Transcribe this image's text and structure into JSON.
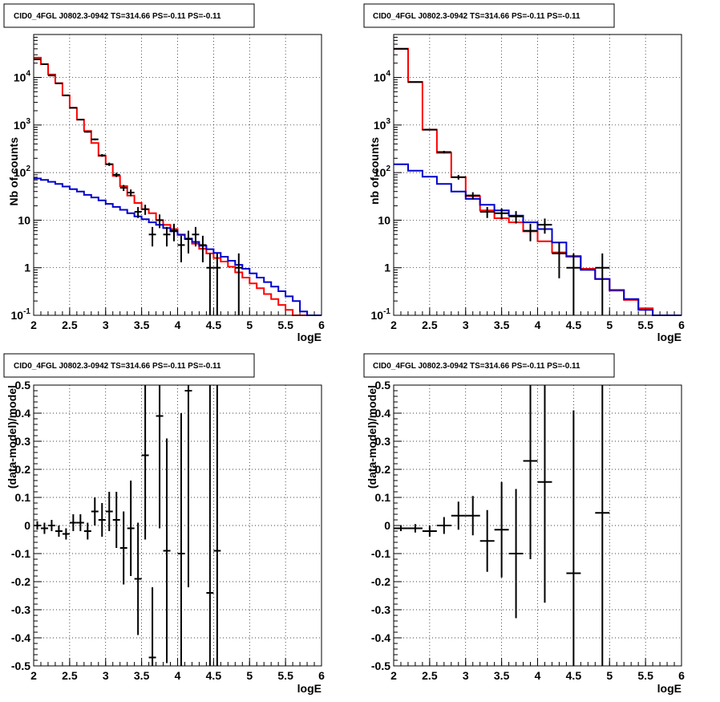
{
  "page": {
    "background": "#ffffff"
  },
  "colors": {
    "data": "#000000",
    "total_model": "#ff0000",
    "background_model": "#0000cc",
    "grid": "#000000"
  },
  "chart_data": [
    {
      "type": "step",
      "title": "CID0_4FGL J0802.3-0942 TS=314.66 PS=-0.11 PS=-0.11",
      "xlabel": "logE",
      "ylabel": "Nb of counts",
      "xlim": [
        2,
        6
      ],
      "ylim": [
        0.1,
        80000
      ],
      "yscale": "log",
      "grid": true,
      "xticks": [
        "2",
        "2.5",
        "3",
        "3.5",
        "4",
        "4.5",
        "5",
        "5.5",
        "6"
      ],
      "yticks": [
        {
          "v": 0.1,
          "t": "10",
          "sup": "-1"
        },
        {
          "v": 1,
          "t": "1"
        },
        {
          "v": 10,
          "t": "10"
        },
        {
          "v": 100,
          "t": "10",
          "sup": "2"
        },
        {
          "v": 1000,
          "t": "10",
          "sup": "3"
        },
        {
          "v": 10000,
          "t": "10",
          "sup": "4"
        }
      ],
      "series": [
        {
          "role": "total_model",
          "bins": [
            2.0,
            2.1,
            2.2,
            2.3,
            2.4,
            2.5,
            2.6,
            2.7,
            2.8,
            2.9,
            3.0,
            3.1,
            3.2,
            3.3,
            3.4,
            3.5,
            3.6,
            3.7,
            3.8,
            3.9,
            4.0,
            4.1,
            4.2,
            4.3,
            4.4,
            4.5,
            4.6,
            4.7,
            4.8,
            4.9,
            5.0,
            5.1,
            5.2,
            5.3,
            5.4,
            5.5,
            5.6,
            5.7,
            5.8,
            5.9,
            6.0
          ],
          "values": [
            26000,
            19000,
            11500,
            7600,
            4200,
            2300,
            1300,
            750,
            420,
            225,
            150,
            85,
            52,
            33,
            23,
            17,
            14,
            10,
            8,
            6.5,
            5,
            4,
            3.2,
            2.5,
            2.0,
            1.6,
            1.35,
            1.05,
            0.8,
            0.62,
            0.47,
            0.37,
            0.28,
            0.22,
            0.165,
            0.13,
            0.1,
            0.1,
            0.1,
            0.1
          ]
        },
        {
          "role": "background_model",
          "bins": [
            2.0,
            2.1,
            2.2,
            2.3,
            2.4,
            2.5,
            2.6,
            2.7,
            2.8,
            2.9,
            3.0,
            3.1,
            3.2,
            3.3,
            3.4,
            3.5,
            3.6,
            3.7,
            3.8,
            3.9,
            4.0,
            4.1,
            4.2,
            4.3,
            4.4,
            4.5,
            4.6,
            4.7,
            4.8,
            4.9,
            5.0,
            5.1,
            5.2,
            5.3,
            5.4,
            5.5,
            5.6,
            5.7,
            5.8,
            5.9,
            6.0
          ],
          "values": [
            75,
            70,
            64,
            58,
            51,
            45,
            40,
            34,
            30,
            26,
            22,
            19,
            16.5,
            14,
            12,
            10.5,
            9,
            8,
            6.8,
            5.8,
            4.9,
            4.1,
            3.5,
            2.9,
            2.45,
            2.05,
            1.7,
            1.4,
            1.15,
            0.95,
            0.76,
            0.62,
            0.5,
            0.4,
            0.32,
            0.25,
            0.2,
            0.12,
            0.1,
            0.1
          ]
        }
      ],
      "points": [
        {
          "x": 2.05,
          "y": 24000,
          "e": 160
        },
        {
          "x": 2.15,
          "y": 19000,
          "e": 140
        },
        {
          "x": 2.25,
          "y": 11000,
          "e": 105
        },
        {
          "x": 2.35,
          "y": 7500,
          "e": 87
        },
        {
          "x": 2.45,
          "y": 4200,
          "e": 65
        },
        {
          "x": 2.55,
          "y": 2300,
          "e": 48
        },
        {
          "x": 2.65,
          "y": 1300,
          "e": 36
        },
        {
          "x": 2.75,
          "y": 720,
          "e": 27
        },
        {
          "x": 2.85,
          "y": 500,
          "e": 22
        },
        {
          "x": 2.95,
          "y": 230,
          "e": 15
        },
        {
          "x": 3.05,
          "y": 150,
          "e": 12
        },
        {
          "x": 3.15,
          "y": 90,
          "e": 9.5
        },
        {
          "x": 3.25,
          "y": 48,
          "e": 7
        },
        {
          "x": 3.35,
          "y": 38,
          "e": 6.2
        },
        {
          "x": 3.45,
          "y": 15,
          "e": 3.9
        },
        {
          "x": 3.55,
          "y": 17,
          "e": 4.1
        },
        {
          "x": 3.65,
          "y": 5,
          "e": 2.2
        },
        {
          "x": 3.75,
          "y": 10,
          "e": 3.2
        },
        {
          "x": 3.85,
          "y": 5,
          "e": 2.2
        },
        {
          "x": 3.95,
          "y": 6,
          "e": 2.4
        },
        {
          "x": 4.05,
          "y": 3,
          "e": 1.7
        },
        {
          "x": 4.15,
          "y": 4,
          "e": 2.0
        },
        {
          "x": 4.25,
          "y": 5,
          "e": 2.2
        },
        {
          "x": 4.35,
          "y": 3,
          "e": 1.7
        },
        {
          "x": 4.45,
          "y": 1,
          "e": 1.0
        },
        {
          "x": 4.55,
          "y": 1,
          "e": 1.0
        },
        {
          "x": 4.85,
          "y": 1,
          "e": 1.0
        }
      ],
      "xerr": 0.05
    },
    {
      "type": "step",
      "title": "CID0_4FGL J0802.3-0942 TS=314.66 PS=-0.11 PS=-0.11",
      "xlabel": "logE",
      "ylabel": "nb of counts",
      "xlim": [
        2,
        6
      ],
      "ylim": [
        0.1,
        80000
      ],
      "yscale": "log",
      "grid": true,
      "xticks": [
        "2",
        "2.5",
        "3",
        "3.5",
        "4",
        "4.5",
        "5",
        "5.5",
        "6"
      ],
      "yticks": [
        {
          "v": 0.1,
          "t": "10",
          "sup": "-1"
        },
        {
          "v": 1,
          "t": "1"
        },
        {
          "v": 10,
          "t": "10"
        },
        {
          "v": 100,
          "t": "10",
          "sup": "2"
        },
        {
          "v": 1000,
          "t": "10",
          "sup": "3"
        },
        {
          "v": 10000,
          "t": "10",
          "sup": "4"
        }
      ],
      "series": [
        {
          "role": "total_model",
          "bins": [
            2.0,
            2.2,
            2.4,
            2.6,
            2.8,
            3.0,
            3.2,
            3.4,
            3.6,
            3.8,
            4.0,
            4.2,
            4.4,
            4.6,
            4.8,
            5.0,
            5.2,
            5.4,
            5.6,
            5.8,
            6.0
          ],
          "values": [
            40000,
            8000,
            800,
            260,
            80,
            32,
            16,
            11,
            9,
            5.8,
            3.6,
            2.1,
            1.7,
            0.95,
            0.58,
            0.33,
            0.21,
            0.14,
            0.1,
            0.1
          ]
        },
        {
          "role": "background_model",
          "bins": [
            2.0,
            2.2,
            2.4,
            2.6,
            2.8,
            3.0,
            3.2,
            3.4,
            3.6,
            3.8,
            4.0,
            4.2,
            4.4,
            4.6,
            4.8,
            5.0,
            5.2,
            5.4,
            5.6,
            5.8,
            6.0
          ],
          "values": [
            150,
            110,
            82,
            58,
            40,
            28,
            21,
            16,
            12.5,
            9,
            6.5,
            3.4,
            1.75,
            0.9,
            0.58,
            0.34,
            0.22,
            0.13,
            0.1,
            0.1
          ]
        }
      ],
      "points": [
        {
          "x": 2.1,
          "y": 40000,
          "e": 200
        },
        {
          "x": 2.3,
          "y": 8000,
          "e": 90
        },
        {
          "x": 2.5,
          "y": 800,
          "e": 28
        },
        {
          "x": 2.7,
          "y": 270,
          "e": 16
        },
        {
          "x": 2.9,
          "y": 80,
          "e": 9
        },
        {
          "x": 3.1,
          "y": 33,
          "e": 5.7
        },
        {
          "x": 3.3,
          "y": 15,
          "e": 3.9
        },
        {
          "x": 3.5,
          "y": 14,
          "e": 3.7
        },
        {
          "x": 3.7,
          "y": 12,
          "e": 3.5
        },
        {
          "x": 3.9,
          "y": 6,
          "e": 2.4
        },
        {
          "x": 4.1,
          "y": 8,
          "e": 2.8
        },
        {
          "x": 4.3,
          "y": 2,
          "e": 1.4
        },
        {
          "x": 4.5,
          "y": 1,
          "e": 1.0
        },
        {
          "x": 4.9,
          "y": 1,
          "e": 1.0
        }
      ],
      "xerr": 0.1
    },
    {
      "type": "scatter",
      "title": "CID0_4FGL J0802.3-0942 TS=314.66 PS=-0.11 PS=-0.11",
      "xlabel": "logE",
      "ylabel": "(data-model)/model",
      "xlim": [
        2,
        6
      ],
      "ylim": [
        -0.5,
        0.5
      ],
      "yscale": "linear",
      "grid": true,
      "xticks": [
        "2",
        "2.5",
        "3",
        "3.5",
        "4",
        "4.5",
        "5",
        "5.5",
        "6"
      ],
      "yticks": [
        "-0.5",
        "-0.4",
        "-0.3",
        "-0.2",
        "-0.1",
        "0",
        "0.1",
        "0.2",
        "0.3",
        "0.4",
        "0.5"
      ],
      "points": [
        {
          "x": 2.05,
          "y": 0.0,
          "e": 0.015
        },
        {
          "x": 2.15,
          "y": -0.01,
          "e": 0.02
        },
        {
          "x": 2.25,
          "y": 0.0,
          "e": 0.02
        },
        {
          "x": 2.35,
          "y": -0.02,
          "e": 0.02
        },
        {
          "x": 2.45,
          "y": -0.03,
          "e": 0.02
        },
        {
          "x": 2.55,
          "y": 0.01,
          "e": 0.03
        },
        {
          "x": 2.65,
          "y": 0.01,
          "e": 0.03
        },
        {
          "x": 2.75,
          "y": -0.02,
          "e": 0.03
        },
        {
          "x": 2.85,
          "y": 0.05,
          "e": 0.05
        },
        {
          "x": 2.95,
          "y": 0.02,
          "e": 0.06
        },
        {
          "x": 3.05,
          "y": 0.05,
          "e": 0.07
        },
        {
          "x": 3.15,
          "y": 0.02,
          "e": 0.1
        },
        {
          "x": 3.25,
          "y": -0.08,
          "e": 0.13
        },
        {
          "x": 3.35,
          "y": -0.01,
          "e": 0.17
        },
        {
          "x": 3.45,
          "y": -0.19,
          "e": 0.2
        },
        {
          "x": 3.55,
          "y": 0.25,
          "e": 0.3
        },
        {
          "x": 3.65,
          "y": -0.47,
          "e": 0.25
        },
        {
          "x": 3.75,
          "y": 0.39,
          "e": 0.4
        },
        {
          "x": 3.85,
          "y": -0.09,
          "e": 0.4
        },
        {
          "x": 4.05,
          "y": -0.1,
          "e": 0.5
        },
        {
          "x": 4.15,
          "y": 0.48,
          "e": 0.7
        },
        {
          "x": 4.45,
          "y": -0.24,
          "e": 1.0
        },
        {
          "x": 4.55,
          "y": -0.09,
          "e": 1.0
        }
      ],
      "xerr": 0.05
    },
    {
      "type": "scatter",
      "title": "CID0_4FGL J0802.3-0942 TS=314.66 PS=-0.11 PS=-0.11",
      "xlabel": "logE",
      "ylabel": "(data-model)/model",
      "xlim": [
        2,
        6
      ],
      "ylim": [
        -0.5,
        0.5
      ],
      "yscale": "linear",
      "grid": true,
      "xticks": [
        "2",
        "2.5",
        "3",
        "3.5",
        "4",
        "4.5",
        "5",
        "5.5",
        "6"
      ],
      "yticks": [
        "-0.5",
        "-0.4",
        "-0.3",
        "-0.2",
        "-0.1",
        "0",
        "0.1",
        "0.2",
        "0.3",
        "0.4",
        "0.5"
      ],
      "points": [
        {
          "x": 2.1,
          "y": -0.01,
          "e": 0.01
        },
        {
          "x": 2.3,
          "y": -0.01,
          "e": 0.015
        },
        {
          "x": 2.5,
          "y": -0.02,
          "e": 0.02
        },
        {
          "x": 2.7,
          "y": 0.0,
          "e": 0.03
        },
        {
          "x": 2.9,
          "y": 0.035,
          "e": 0.05
        },
        {
          "x": 3.1,
          "y": 0.035,
          "e": 0.07
        },
        {
          "x": 3.3,
          "y": -0.055,
          "e": 0.11
        },
        {
          "x": 3.5,
          "y": -0.015,
          "e": 0.17
        },
        {
          "x": 3.7,
          "y": -0.1,
          "e": 0.23
        },
        {
          "x": 3.9,
          "y": 0.23,
          "e": 0.35
        },
        {
          "x": 4.1,
          "y": 0.155,
          "e": 0.43
        },
        {
          "x": 4.5,
          "y": -0.17,
          "e": 0.58
        },
        {
          "x": 4.9,
          "y": 0.045,
          "e": 1.0
        }
      ],
      "xerr": 0.1
    }
  ]
}
